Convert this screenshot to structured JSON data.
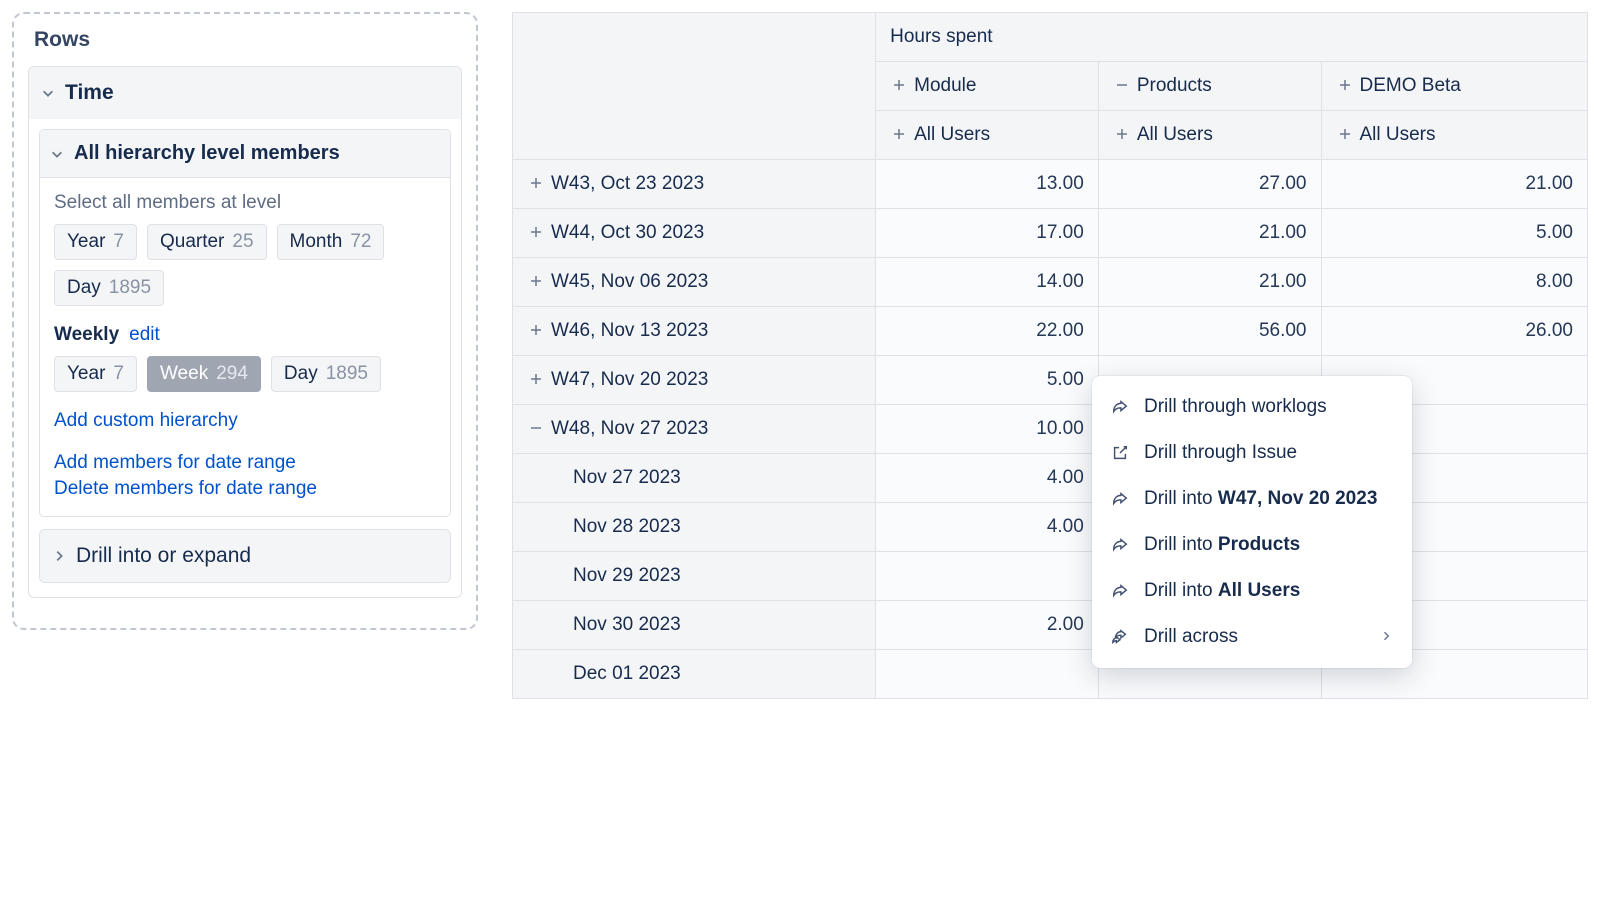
{
  "rows": {
    "title": "Rows",
    "time": {
      "label": "Time",
      "all_levels": {
        "label": "All hierarchy level members",
        "select_label": "Select all members at level",
        "chips": [
          {
            "name": "Year",
            "count": "7",
            "selected": false
          },
          {
            "name": "Quarter",
            "count": "25",
            "selected": false
          },
          {
            "name": "Month",
            "count": "72",
            "selected": false
          },
          {
            "name": "Day",
            "count": "1895",
            "selected": false
          }
        ],
        "weekly_label": "Weekly",
        "edit_label": "edit",
        "weekly_chips": [
          {
            "name": "Year",
            "count": "7",
            "selected": false
          },
          {
            "name": "Week",
            "count": "294",
            "selected": true
          },
          {
            "name": "Day",
            "count": "1895",
            "selected": false
          }
        ],
        "links": [
          "Add custom hierarchy",
          "Add members for date range",
          "Delete members for date range"
        ]
      }
    },
    "drill_label": "Drill into or expand"
  },
  "table": {
    "super_header": "Hours spent",
    "cols": [
      {
        "sign": "plus",
        "label": "Module",
        "sub_sign": "plus",
        "sub": "All Users"
      },
      {
        "sign": "minus",
        "label": "Products",
        "sub_sign": "plus",
        "sub": "All Users"
      },
      {
        "sign": "plus",
        "label": "DEMO Beta",
        "sub_sign": "plus",
        "sub": "All Users"
      }
    ],
    "rows": [
      {
        "sign": "plus",
        "label": "W43, Oct 23 2023",
        "vals": [
          "13.00",
          "27.00",
          "21.00"
        ]
      },
      {
        "sign": "plus",
        "label": "W44, Oct 30 2023",
        "vals": [
          "17.00",
          "21.00",
          "5.00"
        ]
      },
      {
        "sign": "plus",
        "label": "W45, Nov 06 2023",
        "vals": [
          "14.00",
          "21.00",
          "8.00"
        ]
      },
      {
        "sign": "plus",
        "label": "W46, Nov 13 2023",
        "vals": [
          "22.00",
          "56.00",
          "26.00"
        ]
      },
      {
        "sign": "plus",
        "label": "W47, Nov 20 2023",
        "vals": [
          "5.00",
          "",
          ""
        ]
      },
      {
        "sign": "minus",
        "label": "W48, Nov 27 2023",
        "vals": [
          "10.00",
          "",
          ""
        ]
      },
      {
        "sign": "",
        "label": "Nov 27 2023",
        "vals": [
          "4.00",
          "",
          ""
        ],
        "child": true
      },
      {
        "sign": "",
        "label": "Nov 28 2023",
        "vals": [
          "4.00",
          "",
          ""
        ],
        "child": true
      },
      {
        "sign": "",
        "label": "Nov 29 2023",
        "vals": [
          "",
          "",
          ""
        ],
        "child": true
      },
      {
        "sign": "",
        "label": "Nov 30 2023",
        "vals": [
          "2.00",
          "",
          ""
        ],
        "child": true
      },
      {
        "sign": "",
        "label": "Dec 01 2023",
        "vals": [
          "",
          "",
          ""
        ],
        "child": true
      }
    ]
  },
  "menu": {
    "items": [
      {
        "icon": "share",
        "label": "Drill through worklogs",
        "bold": ""
      },
      {
        "icon": "external",
        "label": "Drill through Issue",
        "bold": ""
      },
      {
        "icon": "share",
        "label": "Drill into ",
        "bold": "W47, Nov 20 2023"
      },
      {
        "icon": "share",
        "label": "Drill into ",
        "bold": "Products"
      },
      {
        "icon": "share",
        "label": "Drill into ",
        "bold": "All Users"
      },
      {
        "icon": "share2",
        "label": "Drill across",
        "bold": "",
        "chevron": true
      }
    ]
  },
  "colors": {
    "border": "#dfe1e6",
    "dashed": "#c1c7d0",
    "text": "#172b4d",
    "muted": "#6b778c",
    "link": "#0052cc",
    "header_bg": "#f4f5f7",
    "cell_bg": "#fafbfc",
    "chip_selected": "#9fa6b2"
  }
}
